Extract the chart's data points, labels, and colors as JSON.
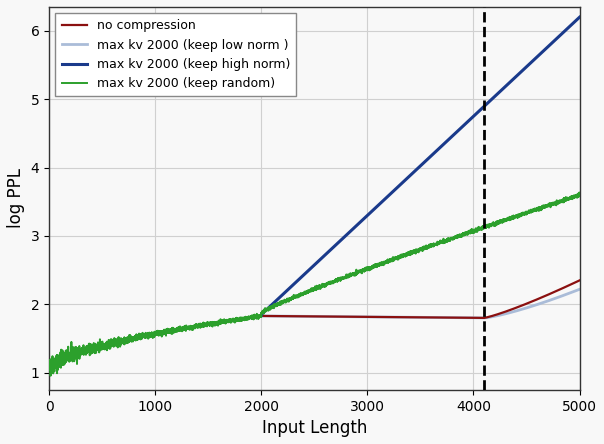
{
  "title": "",
  "xlabel": "Input Length",
  "ylabel": "log PPL",
  "xlim": [
    0,
    5000
  ],
  "ylim": [
    0.75,
    6.35
  ],
  "vline_x": 4096,
  "legend": [
    {
      "label": "no compression",
      "color": "#8b1010",
      "lw": 1.6
    },
    {
      "label": "max kv 2000 (keep low norm )",
      "color": "#aabcd8",
      "lw": 2.0
    },
    {
      "label": "max kv 2000 (keep high norm)",
      "color": "#1a3a8b",
      "lw": 2.2
    },
    {
      "label": "max kv 2000 (keep random)",
      "color": "#2ca02c",
      "lw": 1.4
    }
  ],
  "xticks": [
    0,
    1000,
    2000,
    3000,
    4000,
    5000
  ],
  "yticks": [
    1,
    2,
    3,
    4,
    5,
    6
  ],
  "grid": true,
  "bg_color": "#f8f8f8"
}
